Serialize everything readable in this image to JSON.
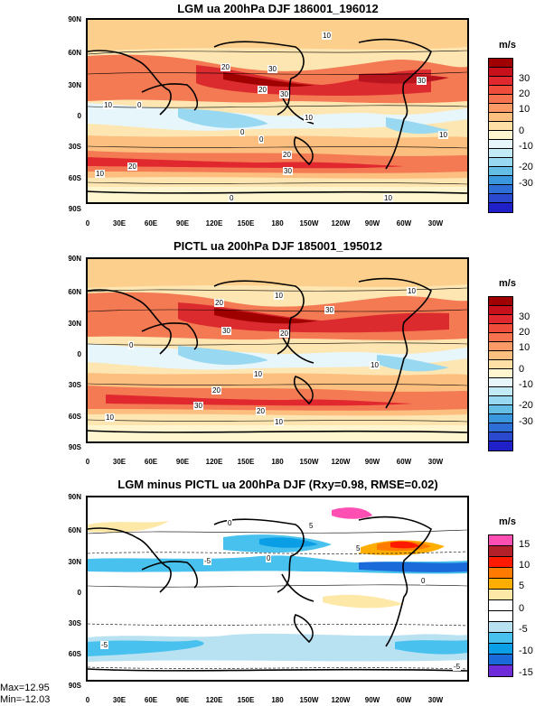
{
  "panels": [
    {
      "title": "LGM ua 200hPa DJF 186001_196012",
      "units": "m/s",
      "colorbar": {
        "colors": [
          "#9f0000",
          "#c8101d",
          "#e0282e",
          "#ef4c3c",
          "#f7734f",
          "#fb9a66",
          "#fdbf80",
          "#fee0a6",
          "#fff6cf",
          "#e7f6fb",
          "#c3ebf7",
          "#98d8f0",
          "#63bde5",
          "#3a97dd",
          "#2d6fd6",
          "#2a49cf",
          "#2020c9"
        ],
        "ticks": [
          "30",
          "20",
          "10",
          "0",
          "-10",
          "-20",
          "-30"
        ]
      },
      "contour_labels": [
        "10",
        "20",
        "30",
        "30",
        "20",
        "30",
        "10",
        "0",
        "10",
        "0",
        "0",
        "20",
        "20",
        "30",
        "10",
        "10",
        "0",
        "10"
      ]
    },
    {
      "title": "PICTL ua 200hPa DJF 185001_195012",
      "units": "m/s",
      "colorbar": {
        "colors": [
          "#9f0000",
          "#c8101d",
          "#e0282e",
          "#ef4c3c",
          "#f7734f",
          "#fb9a66",
          "#fdbf80",
          "#fee0a6",
          "#fff6cf",
          "#e7f6fb",
          "#c3ebf7",
          "#98d8f0",
          "#63bde5",
          "#3a97dd",
          "#2d6fd6",
          "#2a49cf",
          "#2020c9"
        ],
        "ticks": [
          "30",
          "20",
          "10",
          "0",
          "-10",
          "-20",
          "-30"
        ]
      },
      "contour_labels": [
        "20",
        "10",
        "10",
        "30",
        "30",
        "20",
        "0",
        "10",
        "10",
        "20",
        "30",
        "20",
        "10",
        "10"
      ]
    },
    {
      "title": "LGM minus PICTL ua 200hPa DJF (Rxy=0.98, RMSE=0.02)",
      "units": "m/s",
      "colorbar": {
        "colors": [
          "#ff4fb2",
          "#b3202a",
          "#ff1a00",
          "#ff7a00",
          "#ffad00",
          "#fde8a8",
          "#ffffff",
          "#ffffff",
          "#b8e2f2",
          "#49c1ee",
          "#0a9ee6",
          "#1a6ad9",
          "#6e2bd8"
        ],
        "ticks": [
          "15",
          "10",
          "5",
          "0",
          "-5",
          "-10",
          "-15"
        ]
      },
      "contour_labels": [
        "0",
        "5",
        "-5",
        "5",
        "0",
        "0",
        "-5",
        "-5"
      ],
      "stats": {
        "max": "Max=12.95",
        "min": "Min=-12.03"
      }
    }
  ],
  "latitude_labels": [
    "90N",
    "60N",
    "30N",
    "0",
    "30S",
    "60S",
    "90S"
  ],
  "longitude_labels": [
    "0",
    "30E",
    "60E",
    "90E",
    "120E",
    "150E",
    "180",
    "150W",
    "120W",
    "90W",
    "60W",
    "30W"
  ]
}
